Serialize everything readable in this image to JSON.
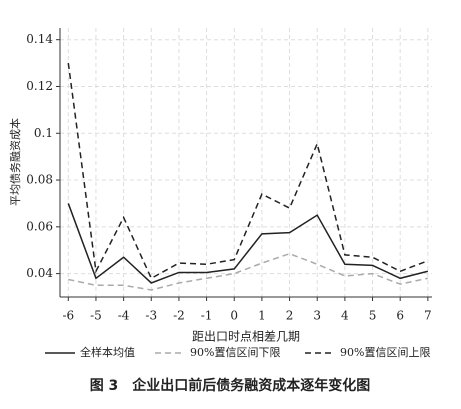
{
  "chart_data": {
    "type": "line",
    "title": "图 3　企业出口前后债务融资成本逐年变化图",
    "x_label": "距出口时点相差几期",
    "y_label": "平均债务融资成本",
    "x": [
      -6,
      -5,
      -4,
      -3,
      -2,
      -1,
      0,
      1,
      2,
      3,
      4,
      5,
      6,
      7
    ],
    "series": [
      {
        "name": "全样本均值",
        "color": "#222222",
        "style": "solid",
        "values": [
          0.07,
          0.038,
          0.047,
          0.036,
          0.0405,
          0.0405,
          0.042,
          0.057,
          0.0575,
          0.065,
          0.044,
          0.0435,
          0.038,
          0.041
        ]
      },
      {
        "name": "90%置信区间下限",
        "color": "#aaaaaa",
        "style": "dashed",
        "values": [
          0.0375,
          0.035,
          0.035,
          0.033,
          0.036,
          0.038,
          0.04,
          0.0445,
          0.0485,
          0.044,
          0.039,
          0.04,
          0.0355,
          0.038
        ]
      },
      {
        "name": "90%置信区间上限",
        "color": "#222222",
        "style": "dashed",
        "values": [
          0.13,
          0.041,
          0.064,
          0.038,
          0.0445,
          0.044,
          0.046,
          0.074,
          0.068,
          0.0955,
          0.048,
          0.047,
          0.041,
          0.0455
        ]
      }
    ],
    "xlim": [
      -6.3,
      7.15
    ],
    "xticks": [
      -6,
      -5,
      -4,
      -3,
      -2,
      -1,
      0,
      1,
      2,
      3,
      4,
      5,
      6,
      7
    ],
    "ylim": [
      0.03,
      0.145
    ],
    "yticks": [
      0.04,
      0.06,
      0.08,
      0.1,
      0.12,
      0.14
    ],
    "grid": true,
    "legend": "bottom"
  }
}
